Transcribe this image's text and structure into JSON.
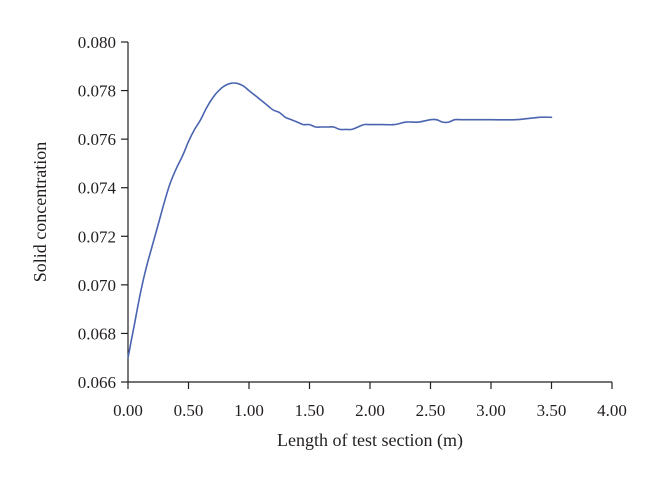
{
  "chart_data": {
    "type": "line",
    "title": "",
    "xlabel": "Length of test section (m)",
    "ylabel": "Solid concentration",
    "xlim": [
      0,
      4
    ],
    "ylim": [
      0.066,
      0.08
    ],
    "x_ticks": [
      "0.00",
      "0.50",
      "1.00",
      "1.50",
      "2.00",
      "2.50",
      "3.00",
      "3.50",
      "4.00"
    ],
    "y_ticks": [
      "0.066",
      "0.068",
      "0.070",
      "0.072",
      "0.074",
      "0.076",
      "0.078",
      "0.080"
    ],
    "x_tick_values": [
      0,
      0.5,
      1,
      1.5,
      2,
      2.5,
      3,
      3.5,
      4
    ],
    "y_tick_values": [
      0.066,
      0.068,
      0.07,
      0.072,
      0.074,
      0.076,
      0.078,
      0.08
    ],
    "grid": false,
    "legend": "none",
    "series": [
      {
        "color": "#4a64b0",
        "x": [
          0.0,
          0.05,
          0.1,
          0.15,
          0.2,
          0.25,
          0.3,
          0.35,
          0.4,
          0.45,
          0.5,
          0.55,
          0.6,
          0.65,
          0.7,
          0.75,
          0.8,
          0.85,
          0.9,
          0.95,
          1.0,
          1.05,
          1.1,
          1.15,
          1.2,
          1.25,
          1.3,
          1.35,
          1.4,
          1.45,
          1.5,
          1.55,
          1.6,
          1.65,
          1.7,
          1.75,
          1.8,
          1.85,
          1.9,
          1.95,
          2.0,
          2.1,
          2.2,
          2.3,
          2.4,
          2.5,
          2.55,
          2.6,
          2.65,
          2.7,
          2.75,
          2.8,
          3.0,
          3.2,
          3.4,
          3.5
        ],
        "y": [
          0.067,
          0.0683,
          0.0696,
          0.0707,
          0.0716,
          0.0725,
          0.0734,
          0.0742,
          0.0748,
          0.0753,
          0.0759,
          0.0764,
          0.0768,
          0.0773,
          0.0777,
          0.078,
          0.0782,
          0.0783,
          0.0783,
          0.0782,
          0.078,
          0.0778,
          0.0776,
          0.0774,
          0.0772,
          0.0771,
          0.0769,
          0.0768,
          0.0767,
          0.0766,
          0.0766,
          0.0765,
          0.0765,
          0.0765,
          0.0765,
          0.0764,
          0.0764,
          0.0764,
          0.0765,
          0.0766,
          0.0766,
          0.0766,
          0.0766,
          0.0767,
          0.0767,
          0.0768,
          0.0768,
          0.0767,
          0.0767,
          0.0768,
          0.0768,
          0.0768,
          0.0768,
          0.0768,
          0.0769,
          0.0769
        ]
      }
    ]
  }
}
